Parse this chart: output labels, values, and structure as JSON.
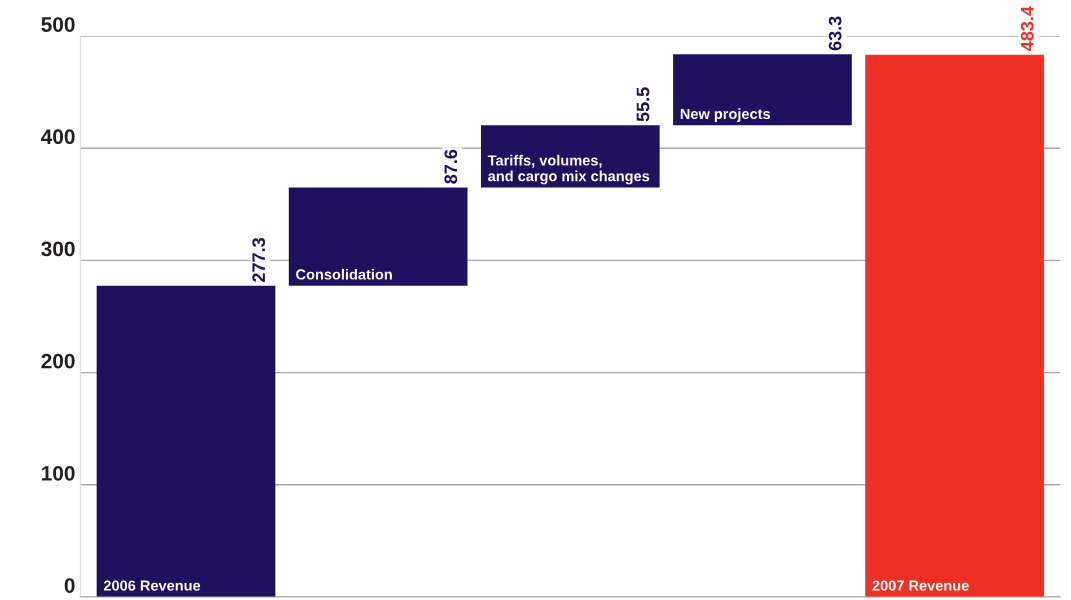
{
  "chart_data": {
    "type": "bar",
    "categories": [
      "2006 Revenue",
      "Consolidation",
      "Tariffs, volumes,\nand cargo mix changes",
      "New projects",
      "2007 Revenue"
    ],
    "values": [
      277.3,
      87.6,
      55.5,
      63.3,
      483.4
    ],
    "base": [
      0,
      277.3,
      364.9,
      420.4,
      0
    ],
    "colors": [
      "#1f1160",
      "#1f1160",
      "#1f1160",
      "#1f1160",
      "#ee3124"
    ],
    "data_labels": true,
    "ylim": [
      0,
      500
    ],
    "yticks": [
      0,
      100,
      200,
      300,
      400,
      500
    ],
    "grid": "y",
    "tick_labels": "y"
  }
}
